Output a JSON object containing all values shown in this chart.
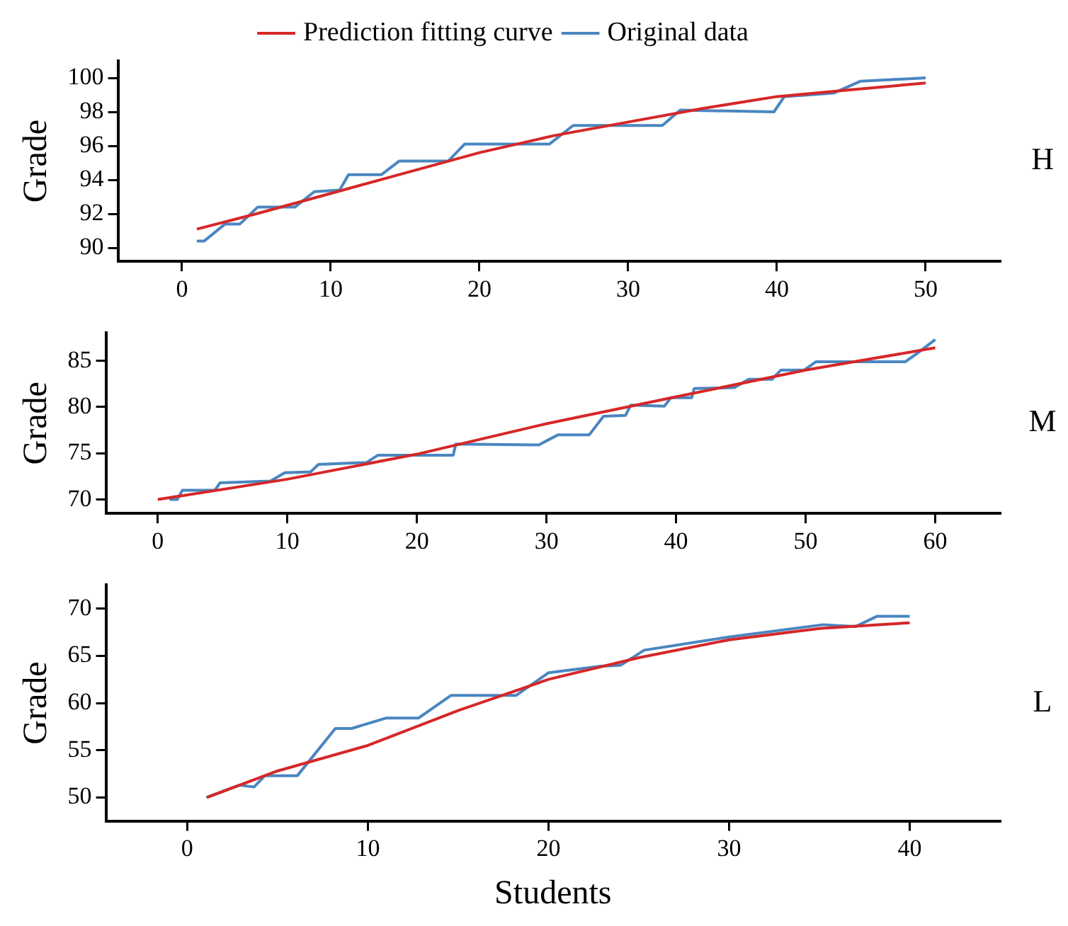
{
  "chart_data": [
    {
      "type": "line",
      "ylabel": "Grade",
      "annotations": [
        "H"
      ],
      "legend": "top",
      "grid": false,
      "xlim": [
        -4.3,
        55
      ],
      "xticks": [
        0,
        10,
        20,
        30,
        40,
        50
      ],
      "ylim": [
        89.2,
        101
      ],
      "yticks": [
        90,
        92,
        94,
        96,
        98,
        100
      ],
      "series": [
        {
          "name": "Prediction fitting curve",
          "color": "#d62728",
          "x": [
            1,
            5,
            10,
            15,
            20,
            25,
            30,
            35,
            40,
            45,
            50
          ],
          "values": [
            91.1,
            92.0,
            93.2,
            94.4,
            95.6,
            96.6,
            97.4,
            98.2,
            98.9,
            99.3,
            99.7
          ]
        },
        {
          "name": "Original data",
          "color": "#4a86c0",
          "x": [
            1,
            1.5,
            2.9,
            3.9,
            5.1,
            7.6,
            8.9,
            10.6,
            11.2,
            13.4,
            14.6,
            17.9,
            19,
            24.7,
            26.3,
            32.3,
            33.5,
            39.8,
            40.5,
            43.8,
            45.6,
            50
          ],
          "values": [
            90.4,
            90.4,
            91.4,
            91.4,
            92.4,
            92.4,
            93.3,
            93.4,
            94.3,
            94.3,
            95.1,
            95.1,
            96.1,
            96.1,
            97.2,
            97.2,
            98.1,
            98.0,
            98.9,
            99.1,
            99.8,
            100.0
          ]
        }
      ]
    },
    {
      "type": "line",
      "ylabel": "Grade",
      "annotations": [
        "M"
      ],
      "grid": false,
      "xlim": [
        -4,
        65
      ],
      "xticks": [
        0,
        10,
        20,
        30,
        40,
        50,
        60
      ],
      "ylim": [
        68.5,
        88
      ],
      "yticks": [
        70,
        75,
        80,
        85
      ],
      "series": [
        {
          "color": "#d62728",
          "x": [
            0,
            10,
            20,
            30,
            40,
            50,
            60
          ],
          "values": [
            70,
            72.2,
            74.9,
            78.2,
            81.1,
            84.0,
            86.4
          ]
        },
        {
          "color": "#4a86c0",
          "x": [
            0.9,
            1.5,
            1.9,
            4.4,
            4.8,
            8.7,
            9.8,
            11.8,
            12.4,
            16.1,
            17,
            22.8,
            23,
            29.4,
            30.9,
            33.3,
            34.4,
            36.1,
            36.5,
            39.1,
            39.6,
            41.2,
            41.4,
            44.5,
            45.6,
            47.4,
            48.1,
            49.9,
            50.8,
            53.9,
            56.5,
            57.7,
            58.7,
            60
          ],
          "values": [
            70,
            70,
            71,
            71,
            71.8,
            72,
            72.9,
            73,
            73.8,
            74,
            74.8,
            74.8,
            76,
            75.9,
            77,
            77,
            79,
            79.1,
            80.2,
            80.1,
            81,
            81,
            82,
            82.1,
            83,
            83,
            84,
            84,
            84.9,
            84.9,
            84.9,
            84.9,
            85.9,
            87.3
          ]
        }
      ]
    },
    {
      "type": "line",
      "ylabel": "Grade",
      "xlabel": "Students",
      "annotations": [
        "L"
      ],
      "grid": false,
      "xlim": [
        -4.5,
        45
      ],
      "xticks": [
        0,
        10,
        20,
        30,
        40
      ],
      "ylim": [
        47.5,
        72.5
      ],
      "yticks": [
        50,
        55,
        60,
        65,
        70
      ],
      "series": [
        {
          "color": "#d62728",
          "x": [
            1.1,
            5,
            10,
            15,
            20,
            25,
            30,
            35,
            40
          ],
          "values": [
            50,
            52.8,
            55.5,
            59.2,
            62.5,
            64.8,
            66.7,
            67.9,
            68.5
          ]
        },
        {
          "color": "#4a86c0",
          "x": [
            1.06,
            2.9,
            3.7,
            4.3,
            6.1,
            8.2,
            9.1,
            11,
            12.8,
            14.6,
            17.1,
            18.2,
            20,
            22.9,
            24,
            25.3,
            30,
            35.2,
            37,
            38.2,
            40
          ],
          "values": [
            50,
            51.3,
            51.1,
            52.3,
            52.3,
            57.3,
            57.3,
            58.4,
            58.4,
            60.8,
            60.8,
            60.8,
            63.2,
            63.9,
            64,
            65.6,
            67,
            68.3,
            68.1,
            69.2,
            69.2
          ]
        }
      ]
    }
  ]
}
